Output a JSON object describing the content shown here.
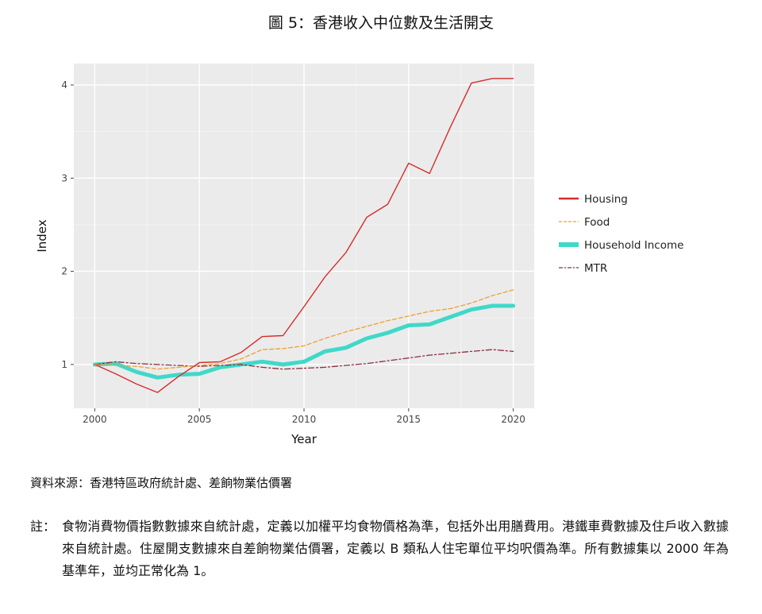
{
  "title": "圖 5：香港收入中位數及生活開支",
  "chart_data": {
    "type": "line",
    "xlabel": "Year",
    "ylabel": "Index",
    "xlim": [
      1999,
      2021
    ],
    "ylim": [
      0.53,
      4.23
    ],
    "xticks": [
      2000,
      2005,
      2010,
      2015,
      2020
    ],
    "yticks": [
      1,
      2,
      3,
      4
    ],
    "grid": true,
    "legend_position": "right",
    "x": [
      2000,
      2001,
      2002,
      2003,
      2004,
      2005,
      2006,
      2007,
      2008,
      2009,
      2010,
      2011,
      2012,
      2013,
      2014,
      2015,
      2016,
      2017,
      2018,
      2019,
      2020
    ],
    "series": [
      {
        "name": "Housing",
        "color": "#d62c2c",
        "style": "solid",
        "values": [
          1.0,
          0.9,
          0.79,
          0.7,
          0.87,
          1.02,
          1.03,
          1.13,
          1.3,
          1.31,
          1.62,
          1.94,
          2.2,
          2.58,
          2.72,
          3.16,
          3.05,
          3.55,
          4.02,
          4.07,
          4.07
        ]
      },
      {
        "name": "Food",
        "color": "#f0a030",
        "style": "dashed",
        "values": [
          1.0,
          0.99,
          0.98,
          0.95,
          0.97,
          0.99,
          1.01,
          1.06,
          1.16,
          1.17,
          1.2,
          1.28,
          1.35,
          1.41,
          1.47,
          1.52,
          1.57,
          1.6,
          1.66,
          1.74,
          1.8
        ]
      },
      {
        "name": "Household Income",
        "color": "#40d8c8",
        "style": "thick",
        "values": [
          1.0,
          1.01,
          0.92,
          0.86,
          0.89,
          0.9,
          0.97,
          1.0,
          1.03,
          1.0,
          1.03,
          1.14,
          1.18,
          1.28,
          1.34,
          1.42,
          1.43,
          1.51,
          1.59,
          1.63,
          1.63
        ]
      },
      {
        "name": "MTR",
        "color": "#8b2f3f",
        "style": "dashdot",
        "values": [
          1.0,
          1.03,
          1.01,
          1.0,
          0.99,
          0.98,
          0.99,
          1.0,
          0.97,
          0.95,
          0.96,
          0.97,
          0.99,
          1.01,
          1.04,
          1.07,
          1.1,
          1.12,
          1.14,
          1.16,
          1.14
        ]
      }
    ]
  },
  "source": "資料來源：香港特區政府統計處、差餉物業估價署",
  "note": {
    "label": "註：",
    "text": "食物消費物價指數數據來自統計處，定義以加權平均食物價格為準，包括外出用膳費用。港鐵車費數據及住戶收入數據來自統計處。住屋開支數據來自差餉物業估價署，定義以 B 類私人住宅單位平均呎價為準。所有數據集以 2000 年為基準年，並均正常化為 1。"
  }
}
